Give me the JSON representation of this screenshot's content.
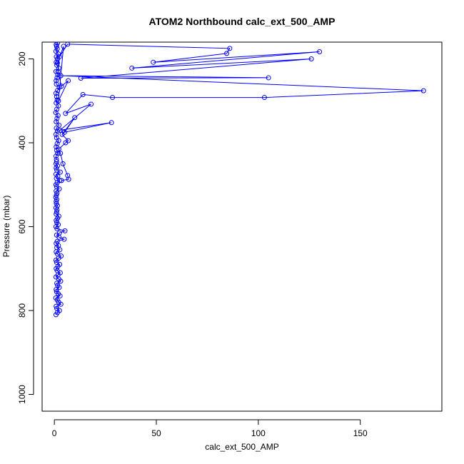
{
  "chart_data": {
    "type": "line",
    "title": "ATOM2 Northbound calc_ext_500_AMP",
    "xlabel": "calc_ext_500_AMP",
    "ylabel": "Pressure (mbar)",
    "xlim": [
      -6,
      190
    ],
    "ylim": [
      1040,
      160
    ],
    "y_reversed": true,
    "x_ticks": [
      0,
      50,
      100,
      150
    ],
    "y_ticks": [
      200,
      400,
      600,
      800,
      1000
    ],
    "x_tick_labels": [
      "0",
      "50",
      "100",
      "150"
    ],
    "y_tick_labels": [
      "200",
      "400",
      "600",
      "800",
      "1000"
    ],
    "grid": false,
    "legend": "none",
    "series": [
      {
        "color": "#0000ff",
        "marker": "open-circle",
        "x": [
          0.8,
          1.5,
          2.5,
          1.2,
          0.9,
          3.2,
          2.1,
          1.4,
          0.7,
          2.8,
          1.9,
          1.1,
          0.9,
          2.4,
          1.6,
          1.2,
          3.1,
          2.2,
          0.8,
          1.8,
          2.9,
          1.4,
          0.9,
          1.7,
          2.6,
          1.1,
          0.8,
          2.1,
          3.3,
          1.5,
          0.9,
          2.7,
          1.2,
          2.0,
          0.9,
          1.4,
          4.8,
          2.3,
          1.1,
          2.5,
          5.2,
          1.3,
          0.8,
          1.9,
          1.2,
          0.9,
          1.6,
          2.2,
          0.9,
          1.1,
          1.3,
          0.8,
          1.5,
          1.0,
          0.9,
          1.2,
          0.7,
          1.0,
          1.3,
          0.9,
          2.4,
          1.1,
          0.8,
          1.4,
          2.6,
          1.0,
          1.7,
          0.8,
          2.9,
          1.2,
          0.9,
          1.6,
          0.8,
          1.1
        ],
        "y": [
          810,
          805,
          800,
          795,
          790,
          785,
          780,
          775,
          770,
          765,
          760,
          755,
          750,
          745,
          740,
          735,
          730,
          725,
          720,
          715,
          710,
          705,
          700,
          695,
          690,
          685,
          680,
          675,
          670,
          665,
          660,
          655,
          650,
          645,
          640,
          635,
          630,
          625,
          620,
          615,
          610,
          605,
          600,
          595,
          590,
          585,
          580,
          575,
          570,
          565,
          560,
          555,
          550,
          545,
          540,
          535,
          530,
          525,
          520,
          515,
          510,
          505,
          500,
          495,
          490,
          485,
          480,
          475,
          470,
          465,
          460,
          455,
          450,
          445
        ]
      },
      {
        "color": "#0000ff",
        "marker": "open-circle",
        "x": [
          3.5,
          7.0,
          6.5,
          4.2,
          3.0,
          2.2,
          5.5,
          6.8,
          3.8,
          10.0,
          5.0,
          28.0,
          2.8,
          18.0,
          5.5,
          14.0,
          28.5,
          103.0,
          181.0,
          3.2,
          105.0,
          13.0,
          126.0,
          38.0,
          130.0,
          48.5,
          84.5,
          86.0,
          6.5,
          2.5,
          1.8,
          3.5,
          6.8,
          2.0,
          4.5,
          1.5
        ],
        "y": [
          490,
          487,
          478,
          450,
          425,
          415,
          400,
          395,
          380,
          340,
          375,
          352,
          370,
          308,
          330,
          285,
          292,
          292,
          276,
          240,
          245,
          246,
          200,
          222,
          183,
          208,
          187,
          175,
          165,
          195,
          230,
          265,
          252,
          300,
          170,
          210
        ]
      },
      {
        "color": "#0000ff",
        "marker": "open-circle",
        "x": [
          1.0,
          0.8,
          1.6,
          1.2,
          0.9,
          1.4,
          2.1,
          1.1,
          0.8,
          1.5,
          1.0,
          2.3,
          0.9,
          1.3,
          1.8,
          0.7,
          1.2,
          2.0,
          0.9,
          1.4,
          1.1,
          0.8,
          1.6,
          2.4,
          1.0,
          0.9,
          1.3,
          1.7,
          0.8,
          2.2,
          1.2,
          0.9,
          1.5,
          1.0,
          1.9,
          0.8,
          1.4,
          1.1,
          0.9,
          1.6
        ],
        "y": [
          440,
          432,
          425,
          418,
          410,
          402,
          395,
          388,
          380,
          372,
          365,
          358,
          350,
          342,
          335,
          328,
          320,
          312,
          305,
          298,
          290,
          282,
          275,
          268,
          260,
          252,
          245,
          238,
          230,
          222,
          215,
          208,
          200,
          195,
          188,
          182,
          176,
          170,
          166,
          162
        ]
      }
    ]
  }
}
